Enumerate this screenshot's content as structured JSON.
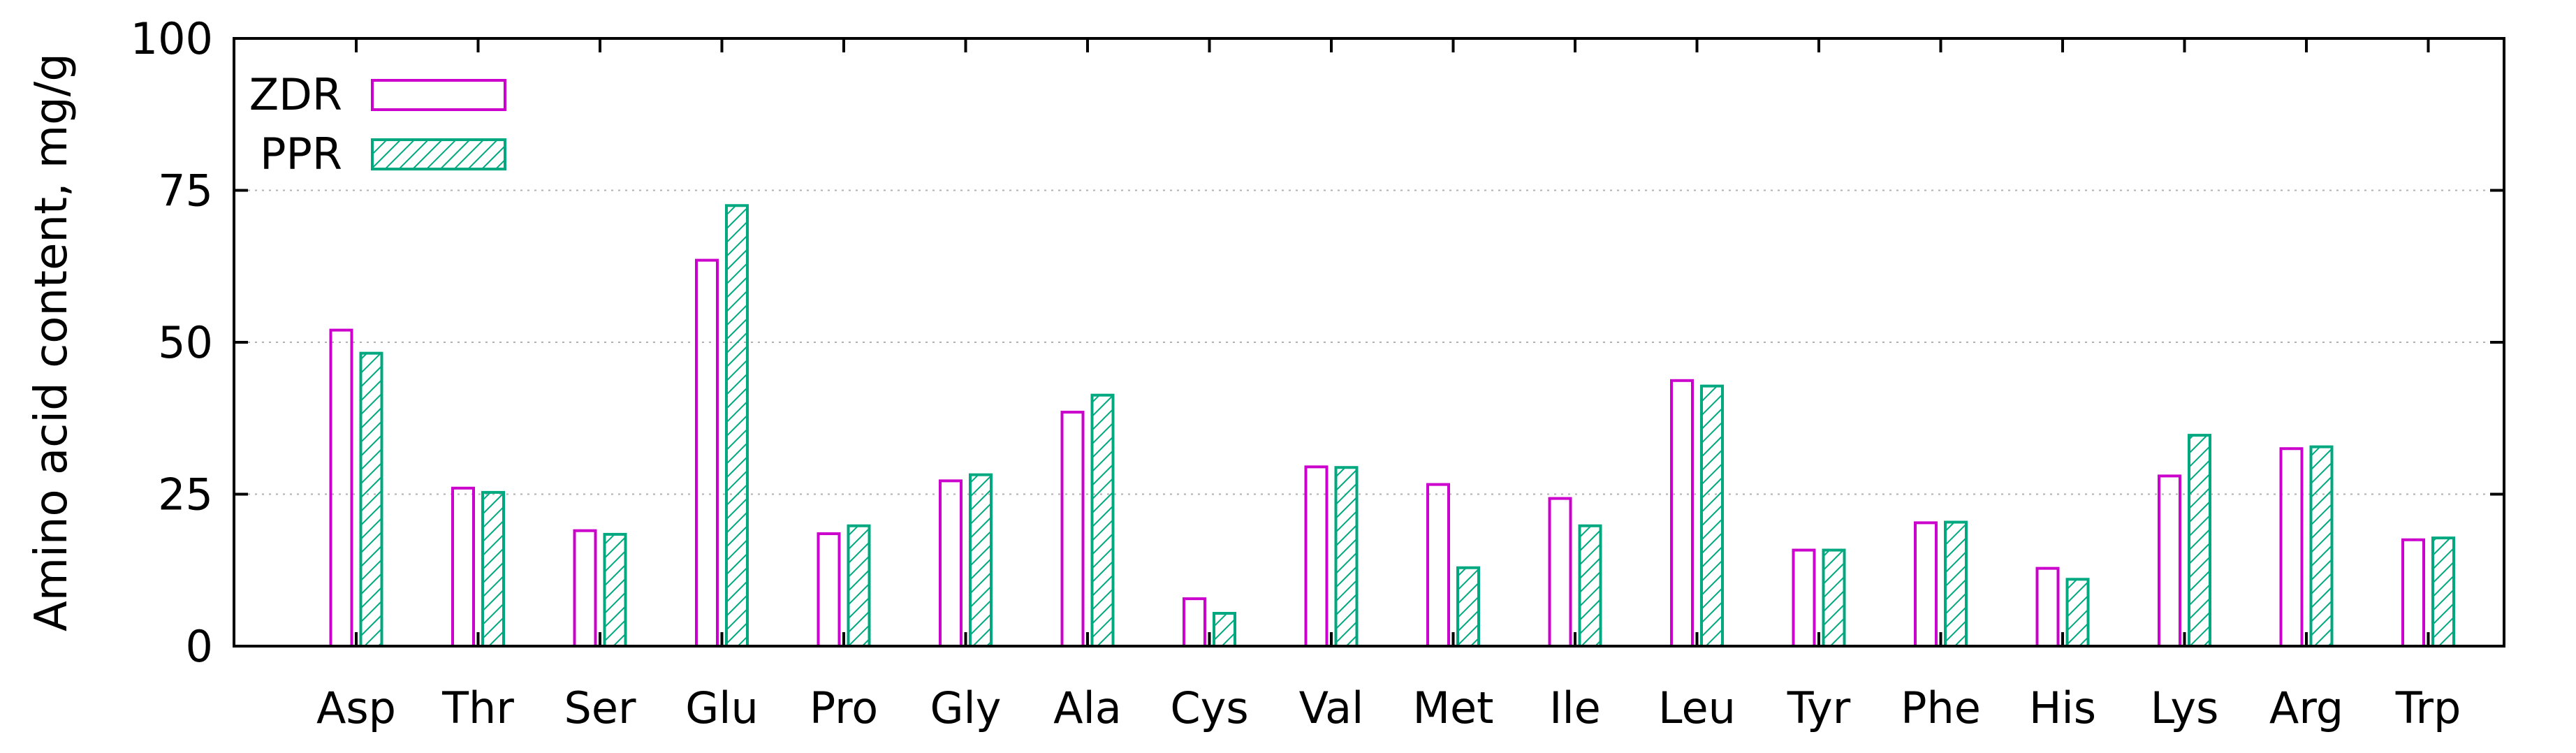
{
  "chart_data": {
    "type": "bar",
    "ylabel": "Amino acid content, mg/g",
    "xlabel": "",
    "ylim": [
      0,
      100
    ],
    "yticks": [
      0,
      25,
      50,
      75,
      100
    ],
    "grid": "horizontal dotted",
    "legend": "top-left",
    "categories": [
      "Asp",
      "Thr",
      "Ser",
      "Glu",
      "Pro",
      "Gly",
      "Ala",
      "Cys",
      "Val",
      "Met",
      "Ile",
      "Leu",
      "Tyr",
      "Phe",
      "His",
      "Lys",
      "Arg",
      "Trp"
    ],
    "series": [
      {
        "name": "ZDR",
        "color": "#cc00cc",
        "fill": "none",
        "values": [
          52.0,
          26.0,
          19.0,
          63.5,
          18.5,
          27.2,
          38.5,
          7.8,
          29.5,
          26.6,
          24.3,
          43.7,
          15.8,
          20.3,
          12.8,
          28.0,
          32.5,
          17.5
        ]
      },
      {
        "name": "PPR",
        "color": "#00a880",
        "fill": "hatched",
        "values": [
          48.2,
          25.3,
          18.4,
          72.5,
          19.8,
          28.2,
          41.3,
          5.4,
          29.4,
          12.9,
          19.8,
          42.8,
          15.8,
          20.4,
          11.0,
          34.7,
          32.8,
          17.8
        ]
      }
    ]
  }
}
